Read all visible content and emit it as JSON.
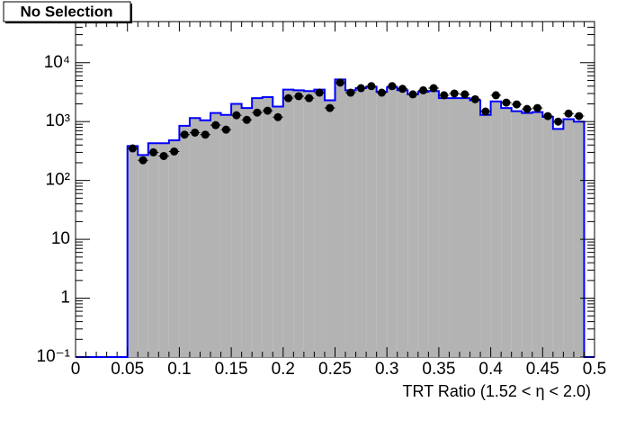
{
  "chart_data": {
    "type": "histogram",
    "title": "No Selection",
    "x_label": "TRT Ratio (1.52 <  η < 2.0)",
    "log_y": true,
    "xlim": [
      0,
      0.5
    ],
    "ylim": [
      0.1,
      50000
    ],
    "xticks": [
      0,
      0.05,
      0.1,
      0.15,
      0.2,
      0.25,
      0.3,
      0.35,
      0.4,
      0.45,
      0.5
    ],
    "yticks": [
      {
        "value": 0.1,
        "label": "10⁻¹"
      },
      1,
      10,
      {
        "value": 100,
        "label": "10²"
      },
      {
        "value": 1000,
        "label": "10³"
      },
      {
        "value": 10000,
        "label": "10⁴"
      }
    ],
    "bins": [
      0.05,
      0.06,
      0.07,
      0.08,
      0.09,
      0.1,
      0.11,
      0.12,
      0.13,
      0.14,
      0.15,
      0.16,
      0.17,
      0.18,
      0.19,
      0.2,
      0.21,
      0.22,
      0.23,
      0.24,
      0.25,
      0.26,
      0.27,
      0.28,
      0.29,
      0.3,
      0.31,
      0.32,
      0.33,
      0.34,
      0.35,
      0.36,
      0.37,
      0.38,
      0.39,
      0.4,
      0.41,
      0.42,
      0.43,
      0.44,
      0.45,
      0.46,
      0.47,
      0.48,
      0.49
    ],
    "histogram": {
      "fill": "#b3b3b3",
      "color": "#0000ff",
      "values": [
        385,
        270,
        430,
        430,
        480,
        850,
        1150,
        1050,
        1400,
        1300,
        2000,
        1700,
        2500,
        2600,
        1800,
        3500,
        3400,
        3300,
        3500,
        2300,
        5200,
        3400,
        3700,
        3900,
        3200,
        3800,
        3400,
        2900,
        3200,
        3300,
        2500,
        2500,
        2500,
        2300,
        1300,
        2200,
        1700,
        1500,
        1400,
        1450,
        1200,
        750,
        1100,
        1000
      ]
    },
    "points": {
      "color": "#000000",
      "values": [
        350,
        220,
        300,
        260,
        310,
        600,
        650,
        600,
        870,
        730,
        1280,
        1070,
        1420,
        1530,
        1190,
        2500,
        2700,
        2500,
        3100,
        1700,
        4600,
        3100,
        3700,
        4000,
        3100,
        4000,
        3600,
        2900,
        3400,
        3700,
        2800,
        3000,
        2900,
        2400,
        1480,
        2800,
        2100,
        1960,
        1640,
        1700,
        1240,
        1000,
        1370,
        1240
      ]
    }
  }
}
